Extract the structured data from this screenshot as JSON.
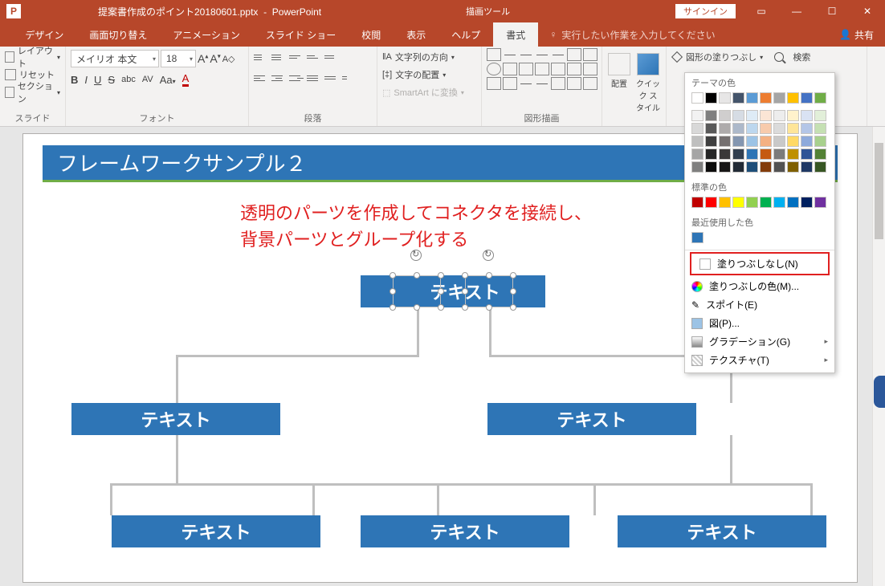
{
  "titlebar": {
    "filename": "提案書作成のポイント20180601.pptx",
    "app": "PowerPoint",
    "context_tool": "描画ツール",
    "signin": "サインイン"
  },
  "tabs": {
    "items": [
      "デザイン",
      "画面切り替え",
      "アニメーション",
      "スライド ショー",
      "校閲",
      "表示",
      "ヘルプ"
    ],
    "context": "書式",
    "tellme": "実行したい作業を入力してください",
    "share": "共有"
  },
  "ribbon": {
    "slides": {
      "layout": "レイアウト",
      "reset": "リセット",
      "section": "セクション",
      "label": "スライド"
    },
    "font": {
      "name": "メイリオ 本文",
      "size": "18",
      "label": "フォント"
    },
    "para": {
      "label": "段落"
    },
    "arrange": {
      "textdir": "文字列の方向",
      "align": "文字の配置",
      "smartart": "SmartArt に変換",
      "label": ""
    },
    "drawing": {
      "label": "図形描画",
      "arrange_btn": "配置",
      "quick": "クイック\nスタイル"
    },
    "fill": {
      "shape_fill": "図形の塗りつぶし",
      "search": "検索"
    }
  },
  "fillpanel": {
    "theme_label": "テーマの色",
    "theme_row1": [
      "#ffffff",
      "#000000",
      "#e7e6e6",
      "#44546a",
      "#5b9bd5",
      "#ed7d31",
      "#a5a5a5",
      "#ffc000",
      "#4472c4",
      "#70ad47"
    ],
    "theme_tints": [
      [
        "#f2f2f2",
        "#7f7f7f",
        "#d0cece",
        "#d6dce4",
        "#deebf6",
        "#fbe5d5",
        "#ededed",
        "#fff2cc",
        "#d9e2f3",
        "#e2efd9"
      ],
      [
        "#d8d8d8",
        "#595959",
        "#aeabab",
        "#adb9ca",
        "#bdd7ee",
        "#f7cbac",
        "#dbdbdb",
        "#fee599",
        "#b4c6e7",
        "#c5e0b3"
      ],
      [
        "#bfbfbf",
        "#3f3f3f",
        "#757070",
        "#8496b0",
        "#9cc3e5",
        "#f4b183",
        "#c9c9c9",
        "#ffd965",
        "#8eaadb",
        "#a8d08d"
      ],
      [
        "#a5a5a5",
        "#262626",
        "#3a3838",
        "#323f4f",
        "#2e75b5",
        "#c55a11",
        "#7b7b7b",
        "#bf9000",
        "#2f5496",
        "#538135"
      ],
      [
        "#7f7f7f",
        "#0c0c0c",
        "#171616",
        "#222a35",
        "#1e4e79",
        "#833c0b",
        "#525252",
        "#7f6000",
        "#1f3864",
        "#375623"
      ]
    ],
    "std_label": "標準の色",
    "std": [
      "#c00000",
      "#ff0000",
      "#ffc000",
      "#ffff00",
      "#92d050",
      "#00b050",
      "#00b0f0",
      "#0070c0",
      "#002060",
      "#7030a0"
    ],
    "recent_label": "最近使用した色",
    "recent": [
      "#2e75b6"
    ],
    "no_fill": "塗りつぶしなし(N)",
    "more_fill": "塗りつぶしの色(M)...",
    "eyedrop": "スポイト(E)",
    "picture": "図(P)...",
    "gradient": "グラデーション(G)",
    "texture": "テクスチャ(T)"
  },
  "slide": {
    "title": "フレームワークサンプル２",
    "callout_l1": "透明のパーツを作成してコネクタを接続し、",
    "callout_l2": "背景パーツとグループ化する",
    "nodes": {
      "top": "テキスト",
      "midL": "テキスト",
      "midR": "テキスト",
      "botL": "テキスト",
      "botM": "テキスト",
      "botR": "テキスト"
    },
    "colors": {
      "node": "#2e75b6",
      "connector": "#bfbfbf",
      "callout": "#e02020",
      "title_underline": "#70ad47"
    }
  }
}
